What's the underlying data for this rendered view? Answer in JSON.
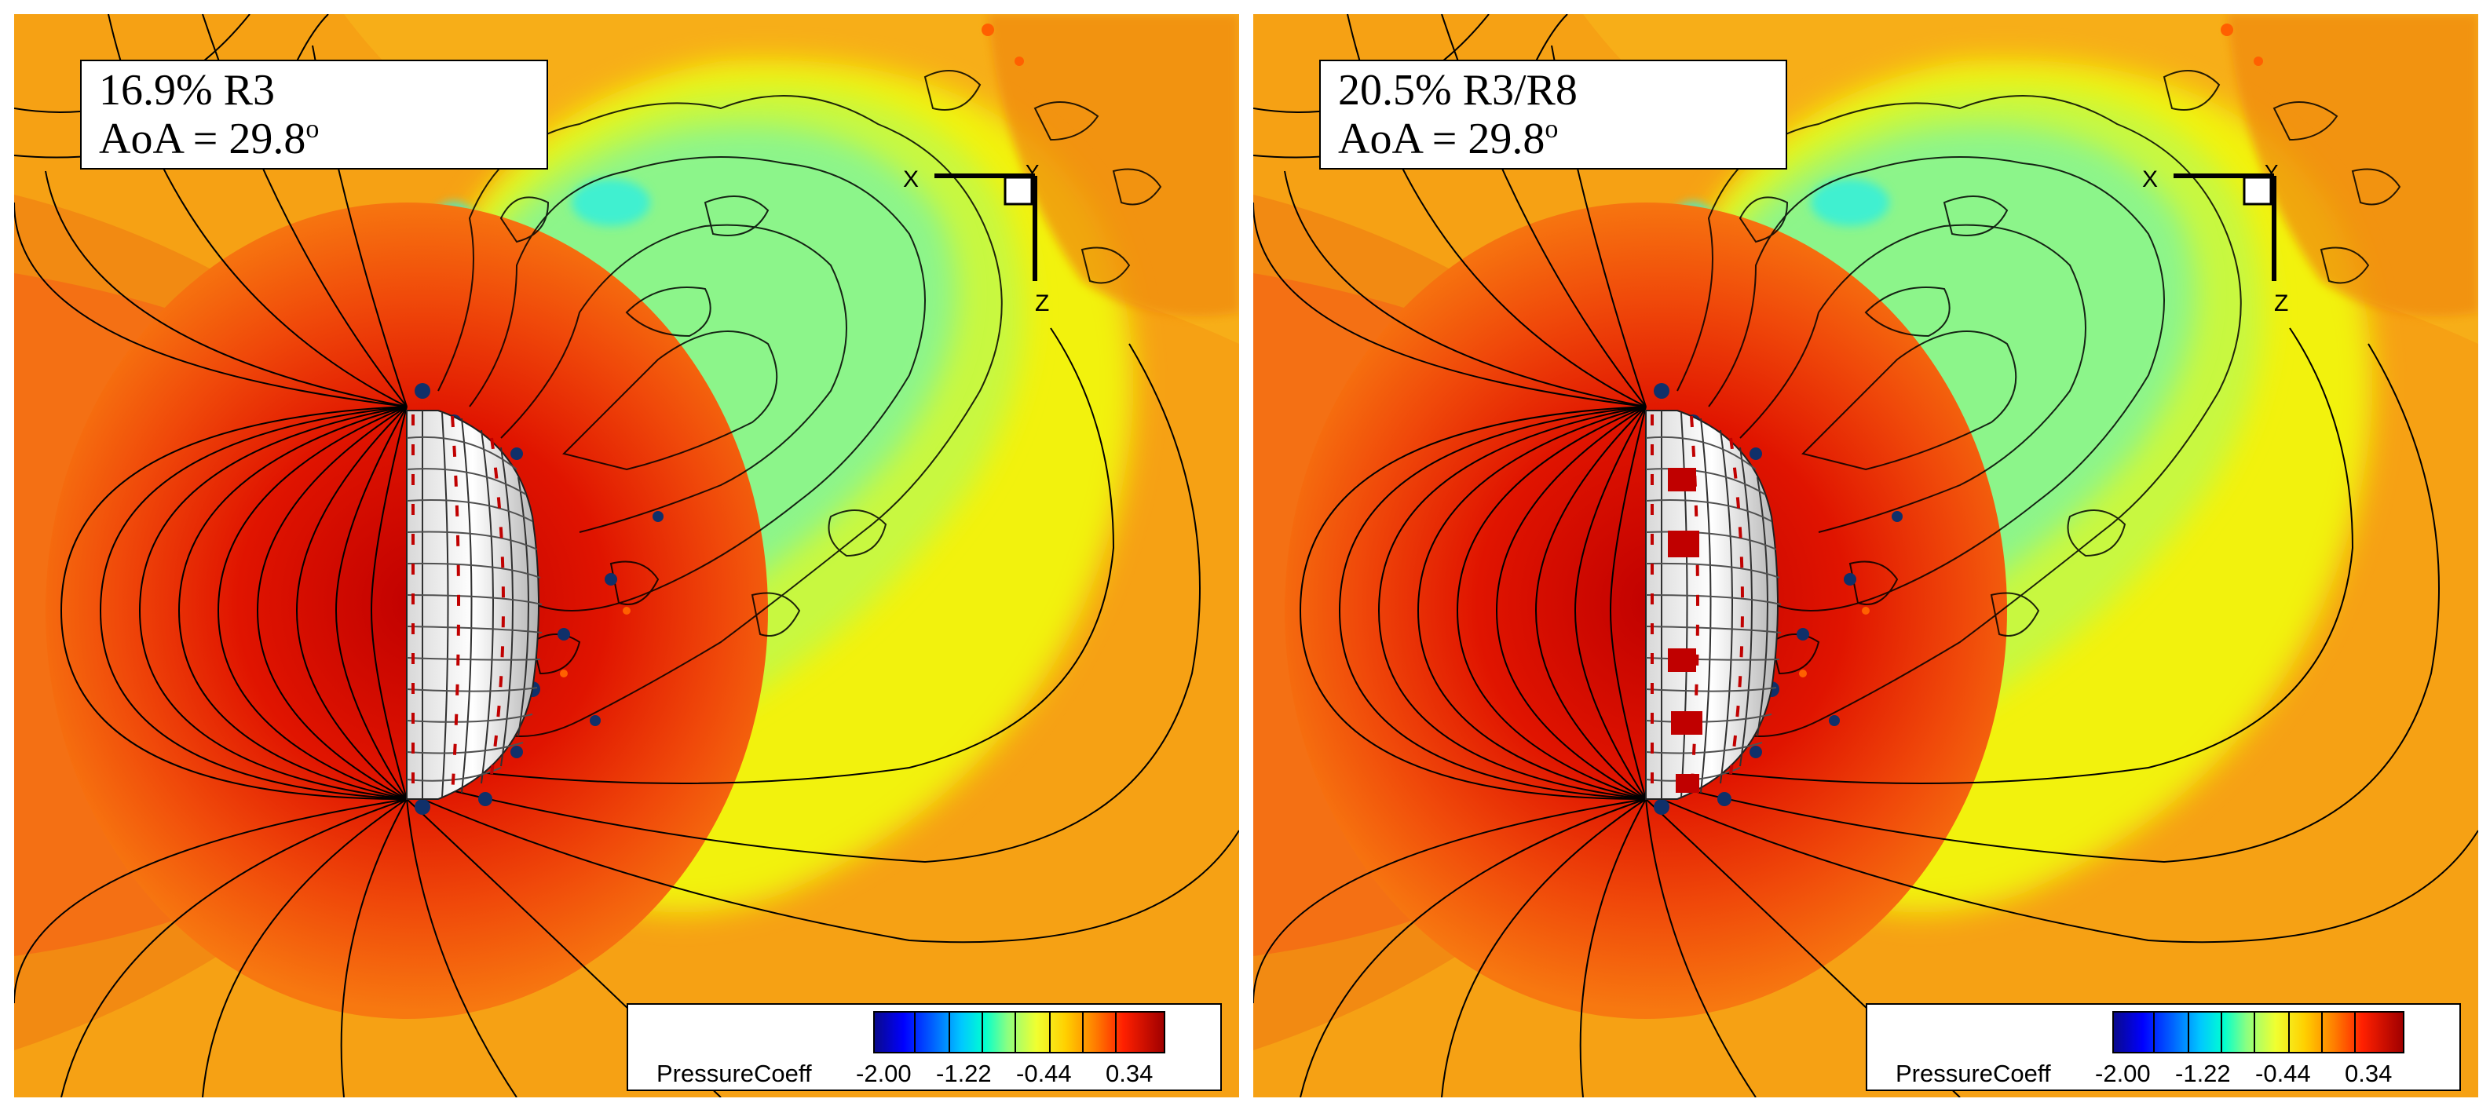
{
  "panels": [
    {
      "label_line1": "16.9% R3",
      "label_line2_prefix": "AoA = 29.8",
      "label_line2_sup": "o",
      "axis_x": "X",
      "axis_y": "Y",
      "axis_z": "Z",
      "legend_title": "PressureCoeff",
      "legend_ticks": [
        "-2.00",
        "-1.22",
        "-0.44",
        "0.34"
      ],
      "vents": false
    },
    {
      "label_line1": "20.5% R3/R8",
      "label_line2_prefix": "AoA = 29.8",
      "label_line2_sup": "o",
      "axis_x": "X",
      "axis_y": "Y",
      "axis_z": "Z",
      "legend_title": "PressureCoeff",
      "legend_ticks": [
        "-2.00",
        "-1.22",
        "-0.44",
        "0.34"
      ],
      "vents": true
    }
  ],
  "colors": {
    "far_field": "#f6a114",
    "stagnation_dark": "#c80000",
    "wake_green": "#8cf58a",
    "wake_cyan": "#40f0d0",
    "yellow": "#f2f20a",
    "canopy_red": "#c00000"
  }
}
